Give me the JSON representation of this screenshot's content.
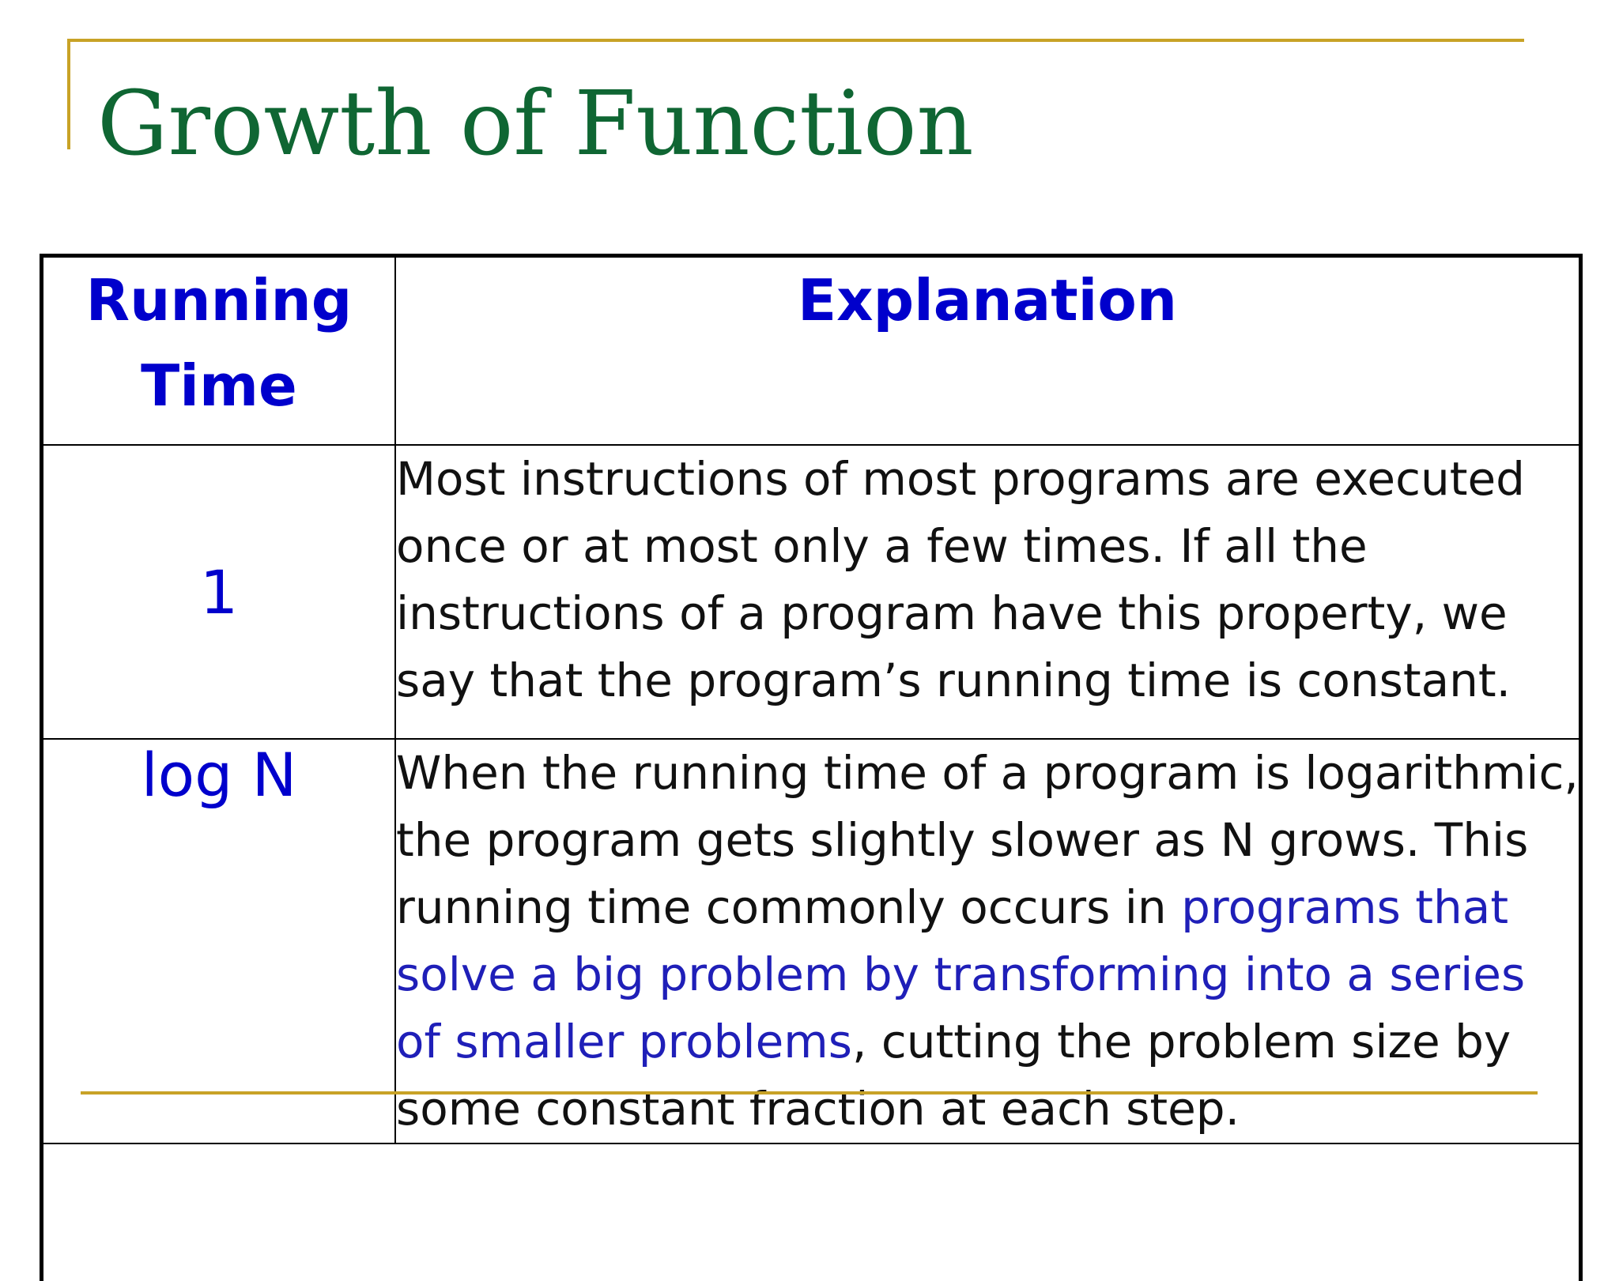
{
  "slide": {
    "title": "Growth of Function"
  },
  "table": {
    "headers": {
      "running_time": [
        "Running",
        "Time"
      ],
      "explanation": "Explanation"
    },
    "rows": [
      {
        "running_time": "1",
        "explanation": "Most instructions of most programs are executed once or at most only a few times. If all the instructions of a program have this property, we say that the program’s running time is constant."
      },
      {
        "running_time": "log N",
        "explanation_before": "When the running time of a program is logarithmic, the program gets slightly slower as N grows. This running time commonly occurs in ",
        "explanation_highlight": "programs that solve a big problem by transforming into a series of smaller problems",
        "explanation_after": ", cutting the problem size by some constant fraction at each step."
      }
    ]
  },
  "colors": {
    "title": "#0f6633",
    "accent_rule": "#c8a226",
    "header_text": "#0000cc",
    "highlight_text": "#1f1fb8"
  }
}
